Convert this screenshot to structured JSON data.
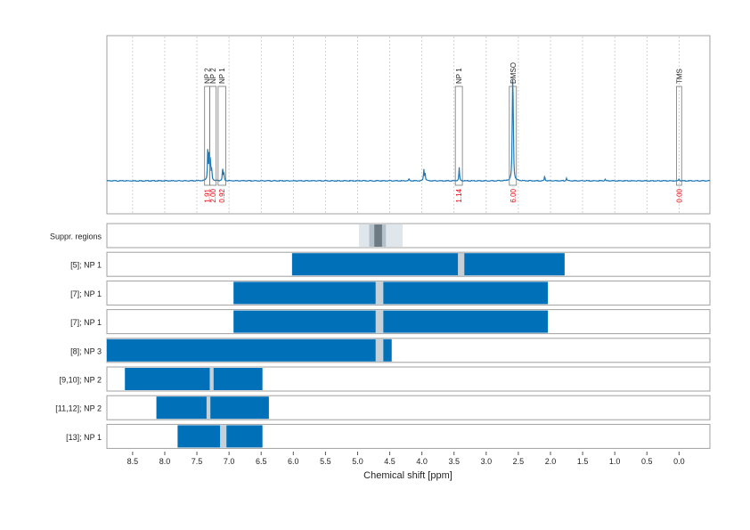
{
  "chart_data": {
    "type": "line",
    "xlabel": "Chemical shift [ppm]",
    "xlim": [
      8.9,
      -0.48
    ],
    "x_ticks": [
      "8.5",
      "8.0",
      "7.5",
      "7.0",
      "6.5",
      "6.0",
      "5.5",
      "5.0",
      "4.5",
      "4.0",
      "3.5",
      "3.0",
      "2.5",
      "2.0",
      "1.5",
      "1.0",
      "0.5",
      "0.0"
    ],
    "grid": true,
    "spectrum": {
      "baseline_ppm_range": [
        8.9,
        -0.48
      ],
      "peaks": [
        {
          "ppm": 7.33,
          "height": 0.35
        },
        {
          "ppm": 7.31,
          "height": 0.28
        },
        {
          "ppm": 7.29,
          "height": 0.22
        },
        {
          "ppm": 7.27,
          "height": 0.12
        },
        {
          "ppm": 7.1,
          "height": 0.13
        },
        {
          "ppm": 7.08,
          "height": 0.08
        },
        {
          "ppm": 3.97,
          "height": 0.12
        },
        {
          "ppm": 3.95,
          "height": 0.08
        },
        {
          "ppm": 3.42,
          "height": 0.14
        },
        {
          "ppm": 2.59,
          "height": 1.0
        },
        {
          "ppm": 2.58,
          "height": 0.6
        },
        {
          "ppm": 2.09,
          "height": 0.05
        },
        {
          "ppm": 1.75,
          "height": 0.03
        },
        {
          "ppm": 4.2,
          "height": 0.02
        },
        {
          "ppm": 1.15,
          "height": 0.02
        },
        {
          "ppm": 0.0,
          "height": 0.02
        }
      ],
      "integration_regions": [
        {
          "label": "NP 2",
          "from": 7.38,
          "to": 7.3,
          "value": "1.91"
        },
        {
          "label": "NP 2",
          "from": 7.3,
          "to": 7.2,
          "value": "2.00"
        },
        {
          "label": "NP 1",
          "from": 7.17,
          "to": 7.05,
          "value": "0.92"
        },
        {
          "label": "NP 1",
          "from": 3.48,
          "to": 3.37,
          "value": "1.14"
        },
        {
          "label": "DMSO",
          "from": 2.64,
          "to": 2.53,
          "value": "6.00"
        },
        {
          "label": "TMS",
          "from": 0.04,
          "to": -0.04,
          "value": "0.00"
        }
      ]
    },
    "tracks": [
      {
        "label": "Suppr. regions",
        "outer": [
          4.98,
          4.3
        ],
        "inner": [
          4.82,
          4.56
        ],
        "core": [
          4.74,
          4.62
        ]
      },
      {
        "label": "[5]; NP 1",
        "range": [
          6.02,
          1.78
        ],
        "gap": [
          3.44,
          3.34
        ]
      },
      {
        "label": "[7]; NP 1",
        "range": [
          6.93,
          2.04
        ],
        "gap": [
          4.72,
          4.6
        ]
      },
      {
        "label": "[7]; NP 1",
        "range": [
          6.93,
          2.04
        ],
        "gap": [
          4.72,
          4.6
        ]
      },
      {
        "label": "[8]; NP 3",
        "range": [
          8.9,
          4.47
        ],
        "gap": [
          4.72,
          4.6
        ]
      },
      {
        "label": "[9,10]; NP 2",
        "range": [
          8.62,
          6.48
        ],
        "gap": [
          7.3,
          7.24
        ]
      },
      {
        "label": "[11,12]; NP 2",
        "range": [
          8.13,
          6.38
        ],
        "gap": [
          7.35,
          7.29
        ]
      },
      {
        "label": "[13]; NP 1",
        "range": [
          7.8,
          6.48
        ],
        "gap": [
          7.14,
          7.04
        ]
      }
    ],
    "colors": {
      "bar": "#0070b8",
      "spectrum": "#1f77b4",
      "gap": "#c7d0d7",
      "suppr_outer": "#dfe6ec",
      "suppr_inner": "#b5c1ca",
      "suppr_core": "#6d7a84",
      "integral_text": "#e8000b",
      "frame": "#a0a0a0",
      "grid": "#c8c8c8"
    }
  }
}
